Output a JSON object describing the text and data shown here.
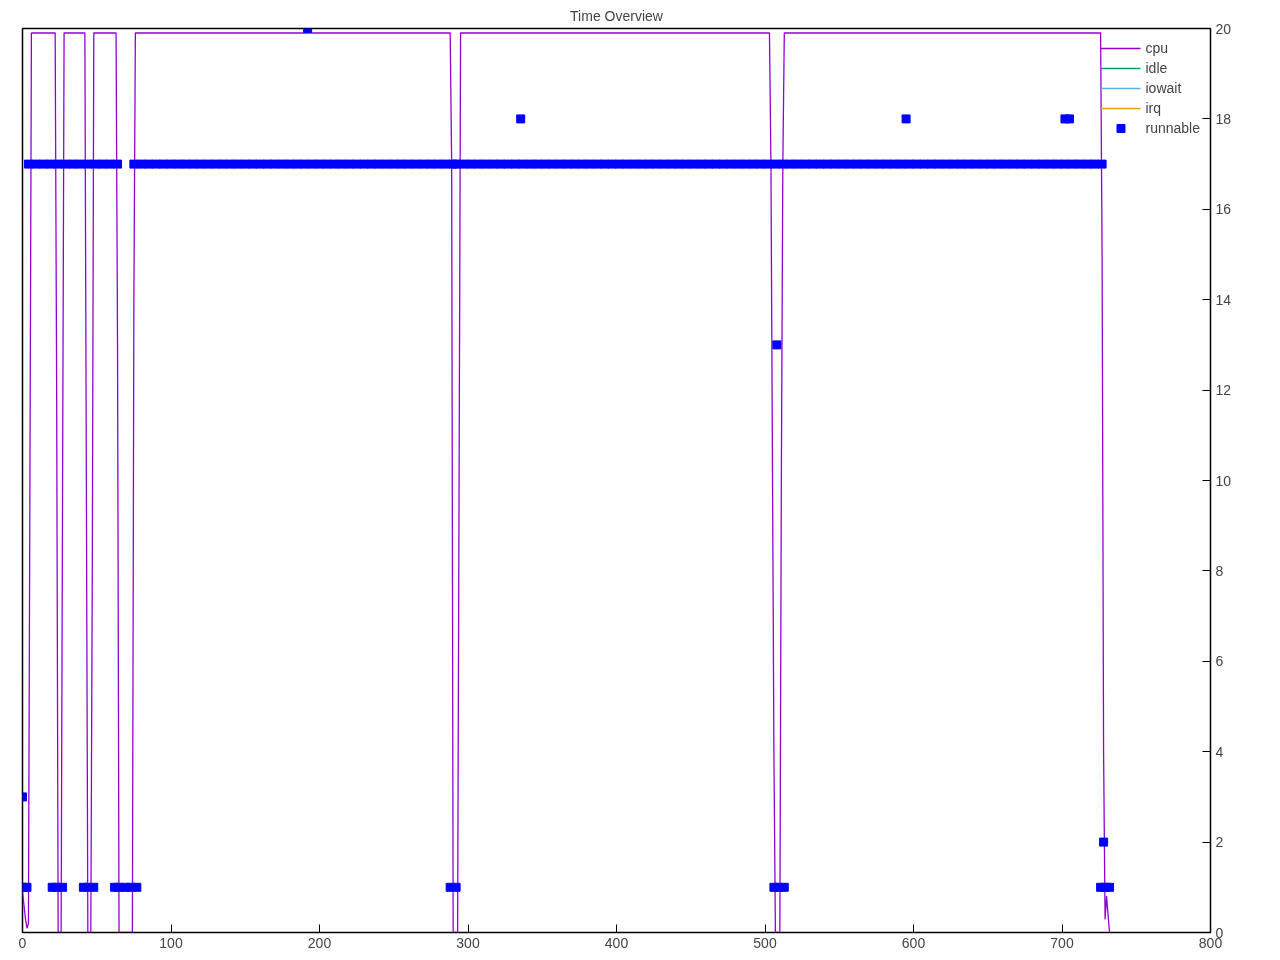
{
  "chart_data": {
    "type": "line",
    "title": "Time Overview",
    "xlim": [
      0,
      800
    ],
    "xticks": [
      0,
      100,
      200,
      300,
      400,
      500,
      600,
      700,
      800
    ],
    "ylim": [
      0,
      20
    ],
    "yticks": [
      0,
      2,
      4,
      6,
      8,
      10,
      12,
      14,
      16,
      18,
      20
    ],
    "grid": false,
    "legend": "top right",
    "series": [
      {
        "name": "cpu",
        "color": "#9400d3",
        "x": [
          0,
          1,
          2,
          3,
          4,
          5,
          6,
          22,
          23,
          24,
          26,
          27,
          28,
          42,
          43,
          44,
          46,
          47,
          48,
          63,
          64,
          65,
          74,
          75,
          76,
          192,
          192.5,
          193,
          288,
          289,
          290,
          293,
          294,
          295,
          503,
          504,
          506,
          507,
          510,
          511,
          512,
          513,
          726,
          727,
          728,
          729,
          730,
          731,
          732
        ],
        "values": [
          0.9,
          0.6,
          0.3,
          0.1,
          0.2,
          10,
          19.9,
          19.9,
          12,
          0,
          0,
          10,
          19.9,
          19.9,
          10,
          0,
          0,
          8,
          19.9,
          19.9,
          13,
          0,
          0,
          14,
          19.9,
          19.9,
          20,
          19.9,
          19.9,
          17,
          0,
          0,
          10,
          19.9,
          19.9,
          17,
          4,
          0,
          0,
          10,
          17,
          19.9,
          19.9,
          15,
          4,
          0.3,
          0.8,
          0.4,
          0
        ]
      },
      {
        "name": "idle",
        "color": "#009e73"
      },
      {
        "name": "iowait",
        "color": "#56b4e9"
      },
      {
        "name": "irq",
        "color": "#e69f00"
      },
      {
        "name": "runnable",
        "type": "scatter",
        "marker": "square",
        "color": "#0000ff",
        "x": [
          0,
          192,
          335.5,
          508,
          595,
          702,
          705,
          728,
          0,
          3,
          20,
          23,
          27,
          41,
          44,
          48,
          62,
          65,
          69,
          73,
          77,
          288,
          292,
          506,
          509,
          513,
          726,
          729,
          732,
          4,
          9,
          14,
          19,
          24,
          29,
          34,
          39,
          44,
          49,
          54,
          59,
          64,
          75,
          80,
          85,
          90,
          95,
          100,
          105,
          110,
          115,
          120,
          125,
          130,
          135,
          140,
          145,
          150,
          155,
          160,
          165,
          170,
          175,
          180,
          185,
          190,
          195,
          200,
          205,
          210,
          215,
          220,
          225,
          230,
          235,
          240,
          245,
          250,
          255,
          260,
          265,
          270,
          275,
          280,
          285,
          290,
          292,
          297,
          302,
          307,
          312,
          317,
          322,
          327,
          332,
          337,
          342,
          347,
          352,
          357,
          362,
          367,
          372,
          377,
          382,
          387,
          392,
          397,
          402,
          407,
          412,
          417,
          422,
          427,
          432,
          437,
          442,
          447,
          452,
          457,
          462,
          467,
          472,
          477,
          482,
          487,
          492,
          497,
          502,
          507,
          512,
          517,
          522,
          527,
          532,
          537,
          542,
          547,
          552,
          557,
          562,
          567,
          572,
          577,
          582,
          587,
          592,
          597,
          602,
          607,
          612,
          617,
          622,
          627,
          632,
          637,
          642,
          647,
          652,
          657,
          662,
          667,
          672,
          677,
          682,
          687,
          692,
          697,
          702,
          707,
          712,
          717,
          722,
          727
        ],
        "values": [
          3,
          20,
          18,
          13,
          18,
          18,
          18,
          2,
          1,
          1,
          1,
          1,
          1,
          1,
          1,
          1,
          1,
          1,
          1,
          1,
          1,
          1,
          1,
          1,
          1,
          1,
          1,
          1,
          1,
          17,
          17,
          17,
          17,
          17,
          17,
          17,
          17,
          17,
          17,
          17,
          17,
          17,
          17,
          17,
          17,
          17,
          17,
          17,
          17,
          17,
          17,
          17,
          17,
          17,
          17,
          17,
          17,
          17,
          17,
          17,
          17,
          17,
          17,
          17,
          17,
          17,
          17,
          17,
          17,
          17,
          17,
          17,
          17,
          17,
          17,
          17,
          17,
          17,
          17,
          17,
          17,
          17,
          17,
          17,
          17,
          17,
          17,
          17,
          17,
          17,
          17,
          17,
          17,
          17,
          17,
          17,
          17,
          17,
          17,
          17,
          17,
          17,
          17,
          17,
          17,
          17,
          17,
          17,
          17,
          17,
          17,
          17,
          17,
          17,
          17,
          17,
          17,
          17,
          17,
          17,
          17,
          17,
          17,
          17,
          17,
          17,
          17,
          17,
          17,
          17,
          17,
          17,
          17,
          17,
          17,
          17,
          17,
          17,
          17,
          17,
          17,
          17,
          17,
          17,
          17,
          17,
          17,
          17,
          17,
          17,
          17,
          17,
          17,
          17,
          17,
          17,
          17,
          17,
          17,
          17,
          17,
          17,
          17,
          17,
          17,
          17,
          17,
          17,
          17,
          17,
          17,
          17,
          17,
          17
        ]
      }
    ]
  }
}
